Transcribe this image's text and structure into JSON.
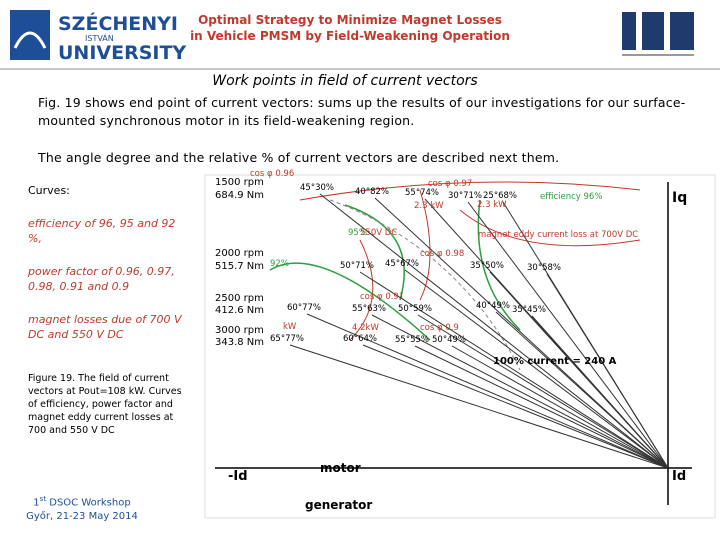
{
  "header": {
    "logo": [
      "SZÉCHENYI",
      "ISTVÁN",
      "UNIVERSITY"
    ],
    "title": "Optimal Strategy to Minimize Magnet Losses in Vehicle PMSM by Field-Weakening Operation"
  },
  "subtitle": "Work points in field of current vectors",
  "paragraphs": [
    "Fig. 19 shows end point of current vectors: sums up the results of our investigations for our surface-mounted synchronous motor in its field-weakening region.",
    "The angle degree and the relative % of current vectors are described next them."
  ],
  "sidebar": {
    "heading": "Curves:",
    "items": [
      "efficiency of 96, 95 and 92 %,",
      "power factor of 0.96, 0.97, 0.98, 0.91 and 0.9",
      "magnet losses due of 700 V DC and 550 V DC"
    ],
    "caption": "Figure 19. The field of current vectors at Pout=108 kW. Curves of efficiency, power factor and magnet eddy current losses at 700 and 550 V DC",
    "footer": {
      "number": "1",
      "suffix": "st",
      "event": " DSOC Workshop",
      "place": "Győr, 21-23 May 2014"
    }
  },
  "figure": {
    "speeds": [
      "1500 rpm",
      "684.9 Nm",
      "2000 rpm",
      "515.7 Nm",
      "2500 rpm",
      "412.6 Nm",
      "3000 rpm",
      "343.8 Nm"
    ],
    "points": [
      "45°30%",
      "40°82%",
      "55°74%",
      "30°71%",
      "25°68%",
      "50°71%",
      "45°67%",
      "35°50%",
      "30°58%",
      "60°77%",
      "55°63%",
      "50°59%",
      "40°49%",
      "35°45%",
      "65°77%",
      "60°64%",
      "55°55%",
      "50°49%"
    ],
    "curve_labels": [
      "cos φ 0.96",
      "cos φ 0.97",
      "efficiency 96%",
      "2.3 kW",
      "2.3 kW",
      "95%",
      "550V DC",
      "magnet eddy current loss at 700V DC",
      "cos φ 0.98",
      "92%",
      "cos φ 0.91",
      "kW",
      "4.2kW",
      "cos φ 0.9"
    ],
    "axes": {
      "iq": "Iq",
      "neg_id": "-Id",
      "id": "Id",
      "motor": "motor",
      "generator": "generator",
      "current": "100% current = 240 A"
    }
  }
}
